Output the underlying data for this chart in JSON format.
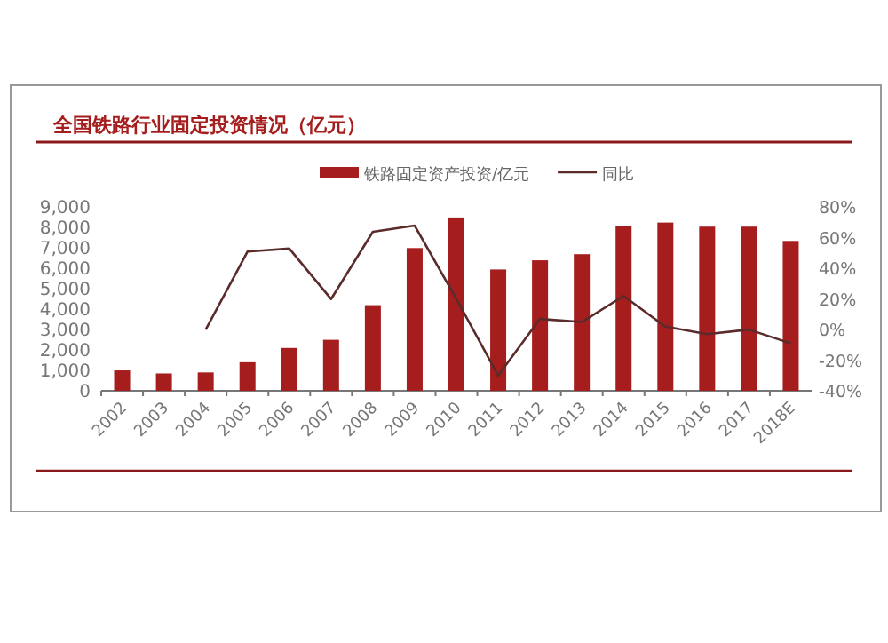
{
  "chart_data": {
    "type": "bar",
    "title": "全国铁路行业固定投资情况（亿元）",
    "categories": [
      "2002",
      "2003",
      "2004",
      "2005",
      "2006",
      "2007",
      "2008",
      "2009",
      "2010",
      "2011",
      "2012",
      "2013",
      "2014",
      "2015",
      "2016",
      "2017",
      "2018E"
    ],
    "series": [
      {
        "name": "铁路固定资产投资/亿元",
        "color": "#a51d1d",
        "values": [
          1000,
          850,
          900,
          1400,
          2100,
          2500,
          4200,
          7000,
          8500,
          5950,
          6400,
          6700,
          8100,
          8250,
          8050,
          8050,
          7350
        ]
      },
      {
        "name": "同比",
        "type": "line",
        "axis": "y2",
        "color": "#5b2b2b",
        "values": [
          null,
          null,
          0,
          51,
          53,
          20,
          64,
          68,
          20,
          -30,
          7,
          5,
          22,
          2,
          -3,
          0,
          -9
        ]
      }
    ],
    "ylim": [
      0,
      9000
    ],
    "yticks": [
      0,
      {
        "value": 1000,
        "label": "1,000"
      },
      {
        "value": 2000,
        "label": "2,000"
      },
      {
        "value": 3000,
        "label": "3,000"
      },
      {
        "value": 4000,
        "label": "4,000"
      },
      {
        "value": 5000,
        "label": "5,000"
      },
      {
        "value": 6000,
        "label": "6,000"
      },
      {
        "value": 7000,
        "label": "7,000"
      },
      {
        "value": 8000,
        "label": "8,000"
      },
      {
        "value": 9000,
        "label": "9,000"
      }
    ],
    "y2lim": [
      -40,
      80
    ],
    "y2ticks": [
      {
        "value": -40,
        "label": "-40%"
      },
      {
        "value": -20,
        "label": "-20%"
      },
      {
        "value": 0,
        "label": "0%"
      },
      {
        "value": 20,
        "label": "20%"
      },
      {
        "value": 40,
        "label": "40%"
      },
      {
        "value": 60,
        "label": "60%"
      },
      {
        "value": 80,
        "label": "80%"
      }
    ],
    "legend": "top",
    "grid": false
  }
}
